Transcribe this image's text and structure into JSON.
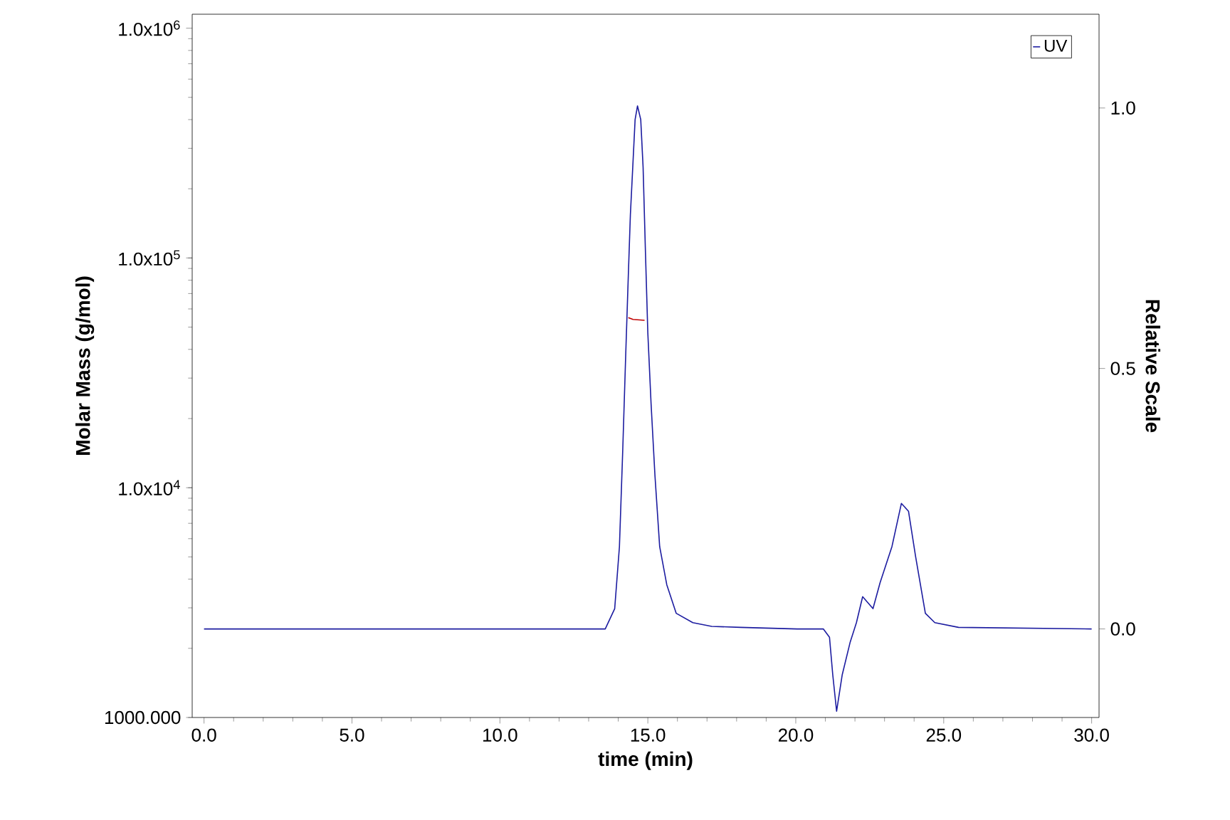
{
  "chart_data": {
    "type": "line",
    "xlabel": "time (min)",
    "ylabel": "Molar Mass (g/mol)",
    "y2label": "Relative Scale",
    "xlim": [
      -0.4,
      30.25
    ],
    "xticks": [
      {
        "value": 0,
        "label": "0.0"
      },
      {
        "value": 5,
        "label": "5.0"
      },
      {
        "value": 10,
        "label": "10.0"
      },
      {
        "value": 15,
        "label": "15.0"
      },
      {
        "value": 20,
        "label": "20.0"
      },
      {
        "value": 25,
        "label": "25.0"
      },
      {
        "value": 30,
        "label": "30.0"
      }
    ],
    "log": "y",
    "ylim": [
      1000,
      1150000
    ],
    "yticks": [
      {
        "value": 1000,
        "label": "1000.000"
      },
      {
        "value": 10000,
        "label": "1.0x10$^{4}$"
      },
      {
        "value": 100000,
        "label": "1.0x10$^{5}$"
      },
      {
        "value": 1000000,
        "label": "1.0x10$^{6}$"
      }
    ],
    "y2lim": [
      -0.17,
      1.18
    ],
    "y2ticks": [
      {
        "value": 0,
        "label": "0.0"
      },
      {
        "value": 0.5,
        "label": "0.5"
      },
      {
        "value": 1,
        "label": "1.0"
      }
    ],
    "grid": false,
    "legend": "top right",
    "marker": "none",
    "line_style": "solid",
    "series": [
      {
        "name": "UV",
        "axis": "y2",
        "color": "#1c1ca0",
        "x": [
          0,
          12.9,
          13.56,
          13.88,
          14.04,
          14.15,
          14.25,
          14.34,
          14.41,
          14.49,
          14.57,
          14.65,
          14.76,
          14.84,
          14.92,
          15.0,
          15.11,
          15.24,
          15.4,
          15.64,
          15.96,
          16.52,
          17.16,
          18.13,
          20.05,
          20.93,
          21.14,
          21.25,
          21.38,
          21.57,
          21.84,
          22.05,
          22.26,
          22.61,
          22.85,
          23.25,
          23.57,
          23.81,
          24.05,
          24.38,
          24.7,
          25.5,
          30.0
        ],
        "values": [
          0.0,
          0.0,
          0.0,
          0.039,
          0.158,
          0.34,
          0.522,
          0.678,
          0.795,
          0.886,
          0.978,
          1.004,
          0.978,
          0.886,
          0.722,
          0.568,
          0.432,
          0.295,
          0.158,
          0.085,
          0.03,
          0.012,
          0.005,
          0.003,
          0.0,
          0.0,
          -0.016,
          -0.088,
          -0.158,
          -0.088,
          -0.025,
          0.012,
          0.062,
          0.039,
          0.089,
          0.158,
          0.241,
          0.226,
          0.139,
          0.03,
          0.012,
          0.003,
          0.0
        ]
      },
      {
        "axis": "y",
        "color": "#c00000",
        "x": [
          14.34,
          14.5,
          14.89
        ],
        "values": [
          55000,
          54000,
          53500
        ]
      }
    ]
  }
}
